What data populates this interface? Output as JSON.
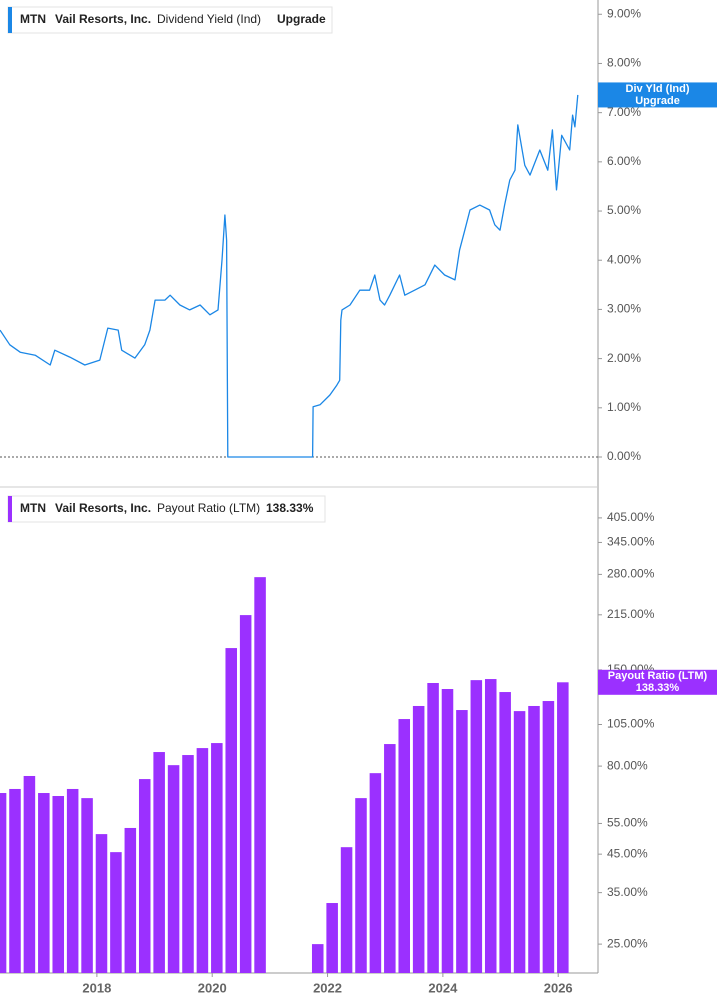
{
  "chart_data": [
    {
      "type": "line",
      "legend": {
        "ticker": "MTN",
        "company": "Vail Resorts, Inc.",
        "value_label": "Upgrade"
      },
      "badge": {
        "label": "Div Yld (Ind)",
        "value_label": "Upgrade"
      },
      "x": [
        2016.32,
        2016.49,
        2016.67,
        2016.93,
        2017.19,
        2017.27,
        2017.53,
        2017.79,
        2018.05,
        2018.19,
        2018.37,
        2018.43,
        2018.66,
        2018.83,
        2018.92,
        2019.01,
        2019.18,
        2019.27,
        2019.44,
        2019.61,
        2019.79,
        2019.96,
        2020.1,
        2020.17,
        2020.22,
        2020.25,
        2020.27,
        2021.74,
        2021.75,
        2021.87,
        2022.04,
        2022.16,
        2022.21,
        2022.23,
        2022.25,
        2022.39,
        2022.56,
        2022.73,
        2022.82,
        2022.91,
        2022.99,
        2023.08,
        2023.25,
        2023.34,
        2023.51,
        2023.69,
        2023.86,
        2024.03,
        2024.21,
        2024.29,
        2024.38,
        2024.47,
        2024.64,
        2024.81,
        2024.9,
        2024.99,
        2025.07,
        2025.16,
        2025.25,
        2025.3,
        2025.42,
        2025.51,
        2025.68,
        2025.82,
        2025.9,
        2025.97,
        2026.06,
        2026.2,
        2026.25,
        2026.29,
        2026.34
      ],
      "series": [
        {
          "name": "Dividend Yield (Ind)",
          "color": "#1b87e6",
          "values": [
            2.58,
            2.28,
            2.13,
            2.07,
            1.87,
            2.17,
            2.03,
            1.87,
            1.97,
            2.62,
            2.58,
            2.17,
            2.01,
            2.28,
            2.58,
            3.19,
            3.19,
            3.29,
            3.09,
            2.99,
            3.09,
            2.89,
            2.99,
            4.0,
            4.92,
            4.41,
            0,
            0,
            1.02,
            1.06,
            1.26,
            1.46,
            1.56,
            2.78,
            2.99,
            3.09,
            3.39,
            3.39,
            3.7,
            3.19,
            3.09,
            3.29,
            3.7,
            3.29,
            3.39,
            3.5,
            3.9,
            3.7,
            3.6,
            4.21,
            4.61,
            5.02,
            5.12,
            5.02,
            4.72,
            4.61,
            5.12,
            5.63,
            5.83,
            6.75,
            5.93,
            5.73,
            6.24,
            5.83,
            6.65,
            5.43,
            6.54,
            6.24,
            6.95,
            6.71,
            7.36
          ]
        }
      ],
      "xlim": [
        2016.32,
        2026.69
      ],
      "ylim": [
        -0.61,
        9.29
      ],
      "yticks": [
        {
          "value": 0,
          "label": "0.00%"
        },
        {
          "value": 1,
          "label": "1.00%"
        },
        {
          "value": 2,
          "label": "2.00%"
        },
        {
          "value": 3,
          "label": "3.00%"
        },
        {
          "value": 4,
          "label": "4.00%"
        },
        {
          "value": 5,
          "label": "5.00%"
        },
        {
          "value": 6,
          "label": "6.00%"
        },
        {
          "value": 7,
          "label": "7.00%"
        },
        {
          "value": 8,
          "label": "8.00%"
        },
        {
          "value": 9,
          "label": "9.00%"
        }
      ],
      "baseline": 0
    },
    {
      "type": "bar",
      "legend": {
        "ticker": "MTN",
        "company": "Vail Resorts, Inc.",
        "value_label": "138.33%"
      },
      "badge": {
        "label": "Payout Ratio (LTM)",
        "value_label": "138.33%"
      },
      "x": [
        2016.33,
        2016.58,
        2016.83,
        2017.08,
        2017.33,
        2017.58,
        2017.83,
        2018.08,
        2018.33,
        2018.58,
        2018.83,
        2019.08,
        2019.33,
        2019.58,
        2019.83,
        2020.08,
        2020.33,
        2020.58,
        2020.83,
        2021.08,
        2021.33,
        2021.58,
        2021.83,
        2022.08,
        2022.33,
        2022.58,
        2022.83,
        2023.08,
        2023.33,
        2023.58,
        2023.83,
        2024.08,
        2024.33,
        2024.58,
        2024.83,
        2025.08,
        2025.33,
        2025.58,
        2025.83,
        2026.08
      ],
      "series": [
        {
          "name": "Payout Ratio (LTM)",
          "color": "#9b30ff",
          "values": [
            67.1,
            68.9,
            75.0,
            67.1,
            65.8,
            68.9,
            64.9,
            51.3,
            45.6,
            53.4,
            73.5,
            87.7,
            80.5,
            86.0,
            90.0,
            93.0,
            173,
            214.6,
            275,
            null,
            null,
            null,
            25.0,
            32.7,
            47.1,
            64.9,
            76.4,
            92.4,
            108.8,
            118.5,
            137.7,
            132.4,
            115.4,
            140.3,
            141.3,
            129.8,
            114.6,
            118.5,
            122.4,
            138.33
          ]
        }
      ],
      "xlim": [
        2016.32,
        2026.69
      ],
      "xticks": [
        2018,
        2020,
        2022,
        2024,
        2026
      ],
      "ylim": [
        20.7,
        486
      ],
      "log_scale": true,
      "yticks": [
        {
          "value": 25,
          "label": "25.00%"
        },
        {
          "value": 35,
          "label": "35.00%"
        },
        {
          "value": 45,
          "label": "45.00%"
        },
        {
          "value": 55,
          "label": "55.00%"
        },
        {
          "value": 80,
          "label": "80.00%"
        },
        {
          "value": 105,
          "label": "105.00%"
        },
        {
          "value": 150,
          "label": "150.00%"
        },
        {
          "value": 215,
          "label": "215.00%"
        },
        {
          "value": 280,
          "label": "280.00%"
        },
        {
          "value": 345,
          "label": "345.00%"
        },
        {
          "value": 405,
          "label": "405.00%"
        }
      ]
    }
  ]
}
